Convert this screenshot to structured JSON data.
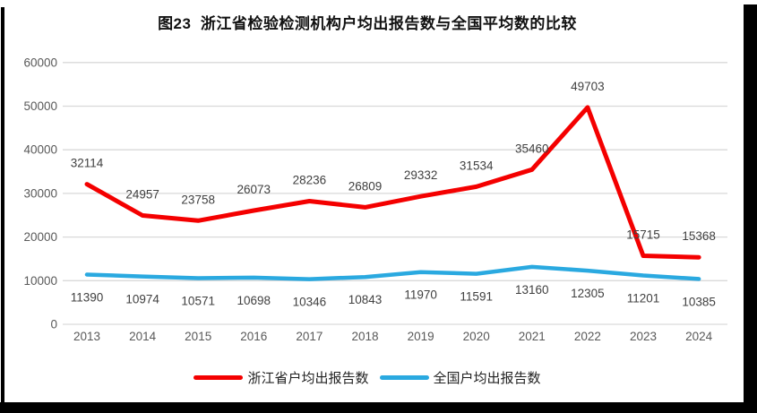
{
  "chart_data": {
    "type": "line",
    "title": "图23  浙江省检验检测机构户均出报告数与全国平均数的比较",
    "categories": [
      "2013",
      "2014",
      "2015",
      "2016",
      "2017",
      "2018",
      "2019",
      "2020",
      "2021",
      "2022",
      "2023",
      "2024"
    ],
    "series": [
      {
        "name": "全国户均出报告数",
        "color": "#2aa9e0",
        "line_width": 4.5,
        "label_side": "below",
        "values": [
          11390,
          10974,
          10571,
          10698,
          10346,
          10843,
          11970,
          11591,
          13160,
          12305,
          11201,
          10385
        ]
      },
      {
        "name": "浙江省户均出报告数",
        "color": "#f40000",
        "line_width": 5,
        "label_side": "above",
        "values": [
          32114,
          24957,
          23758,
          26073,
          28236,
          26809,
          29332,
          31534,
          35460,
          49703,
          15715,
          15368
        ]
      }
    ],
    "legend_order": [
      1,
      0
    ],
    "xlabel": "",
    "ylabel": "",
    "ylim": [
      0,
      60000
    ],
    "ytick_step": 10000,
    "ytick_labels": [
      "0",
      "10000",
      "20000",
      "30000",
      "40000",
      "50000",
      "60000"
    ],
    "grid": "horizontal",
    "legend_position": "bottom",
    "colors": {
      "gridline": "#d9d9d9",
      "axis_tick_text": "#595959",
      "data_label_text": "#404040",
      "title_text": "#111111",
      "frame": "#000000",
      "background": "#ffffff"
    }
  }
}
